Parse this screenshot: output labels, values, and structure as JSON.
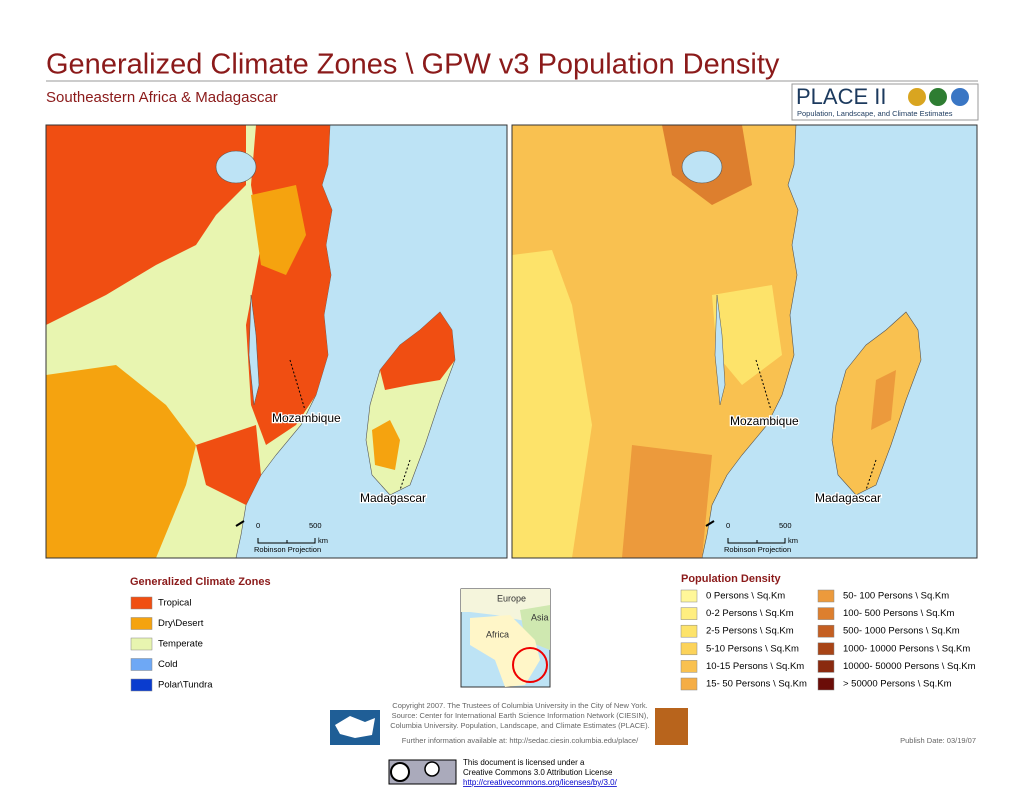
{
  "header": {
    "title": "Generalized Climate Zones \\ GPW v3 Population Density",
    "subtitle": "Southeastern Africa & Madagascar",
    "logo": {
      "name": "PLACE II",
      "tagline": "Population, Landscape, and Climate Estimates"
    }
  },
  "maps": [
    {
      "labels": [
        "Mozambique",
        "Madagascar"
      ],
      "scale": {
        "start": "0",
        "end": "500",
        "unit": "km",
        "projection": "Robinson Projection"
      }
    },
    {
      "labels": [
        "Mozambique",
        "Madagascar"
      ],
      "scale": {
        "start": "0",
        "end": "500",
        "unit": "km",
        "projection": "Robinson Projection"
      }
    }
  ],
  "climate_legend": {
    "title": "Generalized Climate Zones",
    "items": [
      {
        "label": "Tropical",
        "color": "#f04e12"
      },
      {
        "label": "Dry\\Desert",
        "color": "#f5a30f"
      },
      {
        "label": "Temperate",
        "color": "#e8f5b0"
      },
      {
        "label": "Cold",
        "color": "#6ea8f5"
      },
      {
        "label": "Polar\\Tundra",
        "color": "#0a3ccf"
      }
    ]
  },
  "inset": {
    "labels": [
      "Europe",
      "Asia",
      "Africa"
    ]
  },
  "density_legend": {
    "title": "Population Density",
    "items": [
      {
        "label": "0 Persons \\ Sq.Km",
        "color": "#fff799"
      },
      {
        "label": "0-2 Persons \\ Sq.Km",
        "color": "#ffee80"
      },
      {
        "label": "2-5 Persons \\ Sq.Km",
        "color": "#fde36a"
      },
      {
        "label": "5-10 Persons \\ Sq.Km",
        "color": "#fcd35a"
      },
      {
        "label": "10-15 Persons \\ Sq.Km",
        "color": "#f9c150"
      },
      {
        "label": "15- 50 Persons \\ Sq.Km",
        "color": "#f5ad45"
      },
      {
        "label": "50- 100 Persons \\ Sq.Km",
        "color": "#ec9a3c"
      },
      {
        "label": "100- 500 Persons \\ Sq.Km",
        "color": "#dd7f2e"
      },
      {
        "label": "500- 1000 Persons \\ Sq.Km",
        "color": "#c45f22"
      },
      {
        "label": "1000- 10000 Persons \\ Sq.Km",
        "color": "#a84416"
      },
      {
        "label": "10000- 50000 Persons \\ Sq.Km",
        "color": "#8a2a0f"
      },
      {
        "label": "> 50000 Persons \\ Sq.Km",
        "color": "#6b0d08"
      }
    ]
  },
  "footer": {
    "copyright": [
      "Copyright 2007. The Trustees of Columbia University in the City of New York.",
      "Source: Center for International Earth Science Information Network (CIESIN),",
      "Columbia University. Population, Landscape, and Climate Estimates (PLACE).",
      "Further information available at:  http://sedac.ciesin.columbia.edu/place/"
    ],
    "publish_date": "Publish Date: 03/19/07",
    "license": [
      "This document is licensed under a",
      "Creative Commons 3.0 Attribution License",
      "http://creativecommons.org/licenses/by/3.0/"
    ]
  }
}
